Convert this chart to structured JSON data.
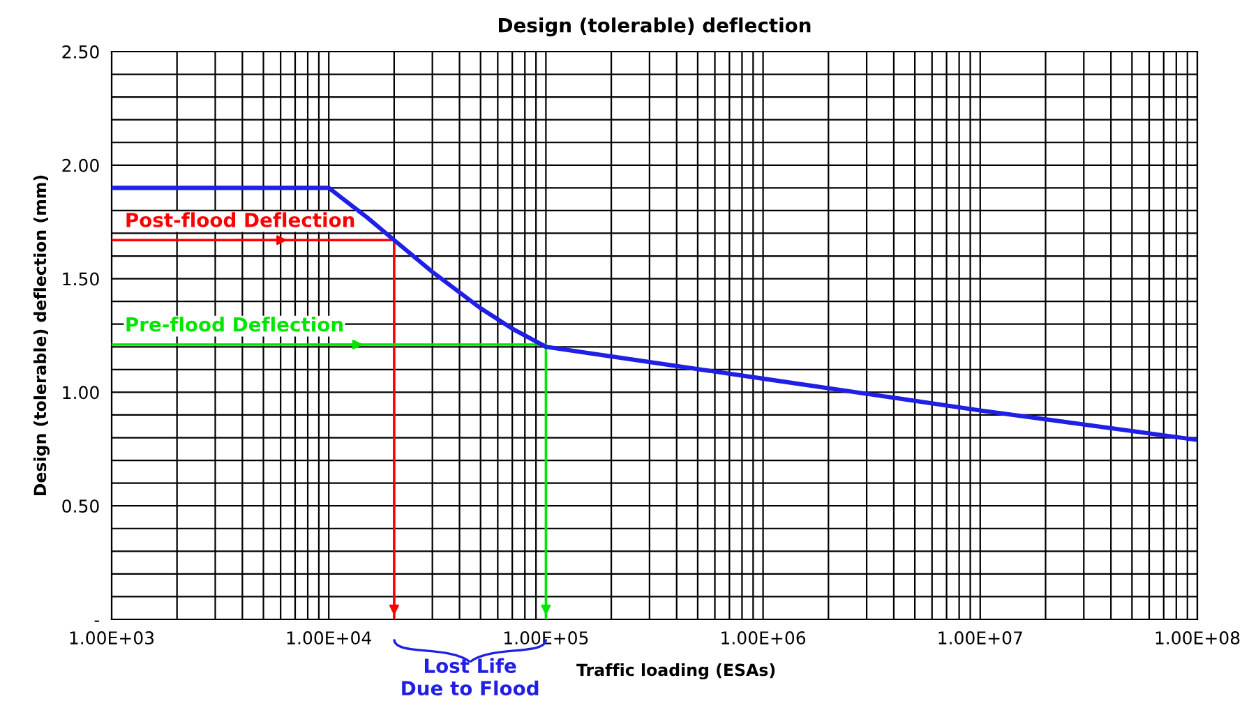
{
  "chart_data": {
    "type": "line",
    "title": "Design (tolerable) deflection",
    "xlabel": "Traffic loading (ESAs)",
    "ylabel": "Design (tolerable) deflection (mm)",
    "log": "x",
    "grid": true,
    "legend": false,
    "marker": "none",
    "line_style": "solid",
    "xlim": [
      1000,
      100000000
    ],
    "ylim": [
      0,
      2.5
    ],
    "xticks": [
      {
        "value": 1000,
        "label": "1.00E+03"
      },
      {
        "value": 10000,
        "label": "1.00E+04"
      },
      {
        "value": 100000,
        "label": "1.00E+05"
      },
      {
        "value": 1000000,
        "label": "1.00E+06"
      },
      {
        "value": 10000000,
        "label": "1.00E+07"
      },
      {
        "value": 100000000,
        "label": "1.00E+08"
      },
      {
        "value": 2000,
        "label": null
      },
      {
        "value": 3000,
        "label": null
      },
      {
        "value": 4000,
        "label": null
      },
      {
        "value": 5000,
        "label": null
      },
      {
        "value": 6000,
        "label": null
      },
      {
        "value": 7000,
        "label": null
      },
      {
        "value": 8000,
        "label": null
      },
      {
        "value": 9000,
        "label": null
      },
      {
        "value": 20000,
        "label": null
      },
      {
        "value": 30000,
        "label": null
      },
      {
        "value": 40000,
        "label": null
      },
      {
        "value": 50000,
        "label": null
      },
      {
        "value": 60000,
        "label": null
      },
      {
        "value": 70000,
        "label": null
      },
      {
        "value": 80000,
        "label": null
      },
      {
        "value": 90000,
        "label": null
      },
      {
        "value": 200000,
        "label": null
      },
      {
        "value": 300000,
        "label": null
      },
      {
        "value": 400000,
        "label": null
      },
      {
        "value": 500000,
        "label": null
      },
      {
        "value": 600000,
        "label": null
      },
      {
        "value": 700000,
        "label": null
      },
      {
        "value": 800000,
        "label": null
      },
      {
        "value": 900000,
        "label": null
      },
      {
        "value": 2000000,
        "label": null
      },
      {
        "value": 3000000,
        "label": null
      },
      {
        "value": 4000000,
        "label": null
      },
      {
        "value": 5000000,
        "label": null
      },
      {
        "value": 6000000,
        "label": null
      },
      {
        "value": 7000000,
        "label": null
      },
      {
        "value": 8000000,
        "label": null
      },
      {
        "value": 9000000,
        "label": null
      },
      {
        "value": 20000000,
        "label": null
      },
      {
        "value": 30000000,
        "label": null
      },
      {
        "value": 40000000,
        "label": null
      },
      {
        "value": 50000000,
        "label": null
      },
      {
        "value": 60000000,
        "label": null
      },
      {
        "value": 70000000,
        "label": null
      },
      {
        "value": 80000000,
        "label": null
      },
      {
        "value": 90000000,
        "label": null
      }
    ],
    "yticks": [
      {
        "value": 0,
        "label": "-"
      },
      {
        "value": 0.5,
        "label": "0.50"
      },
      {
        "value": 1.0,
        "label": "1.00"
      },
      {
        "value": 1.5,
        "label": "1.50"
      },
      {
        "value": 2.0,
        "label": "2.00"
      },
      {
        "value": 2.5,
        "label": "2.50"
      },
      {
        "value": 0.1,
        "label": null
      },
      {
        "value": 0.2,
        "label": null
      },
      {
        "value": 0.3,
        "label": null
      },
      {
        "value": 0.4,
        "label": null
      },
      {
        "value": 0.6,
        "label": null
      },
      {
        "value": 0.7,
        "label": null
      },
      {
        "value": 0.8,
        "label": null
      },
      {
        "value": 0.9,
        "label": null
      },
      {
        "value": 1.1,
        "label": null
      },
      {
        "value": 1.2,
        "label": null
      },
      {
        "value": 1.3,
        "label": null
      },
      {
        "value": 1.4,
        "label": null
      },
      {
        "value": 1.6,
        "label": null
      },
      {
        "value": 1.7,
        "label": null
      },
      {
        "value": 1.8,
        "label": null
      },
      {
        "value": 1.9,
        "label": null
      },
      {
        "value": 2.1,
        "label": null
      },
      {
        "value": 2.2,
        "label": null
      },
      {
        "value": 2.3,
        "label": null
      },
      {
        "value": 2.4,
        "label": null
      }
    ],
    "series": [
      {
        "color": "#1f1fe6",
        "x": [
          1000,
          10000,
          15000,
          20000,
          30000,
          50000,
          70000,
          100000,
          1000000,
          10000000,
          100000000
        ],
        "values": [
          1.9,
          1.9,
          1.77,
          1.67,
          1.53,
          1.37,
          1.28,
          1.2,
          1.06,
          0.92,
          0.79
        ]
      },
      {
        "name": "Post-flood Deflection",
        "color": "#ff0000",
        "x": [
          1000,
          20000,
          20000
        ],
        "values": [
          1.67,
          1.67,
          0
        ]
      },
      {
        "name": "Pre-flood Deflection",
        "color": "#00e600",
        "x": [
          1000,
          100000,
          100000
        ],
        "values": [
          1.21,
          1.21,
          0
        ]
      }
    ],
    "annotations": [
      "Lost Life\nDue to Flood"
    ]
  }
}
